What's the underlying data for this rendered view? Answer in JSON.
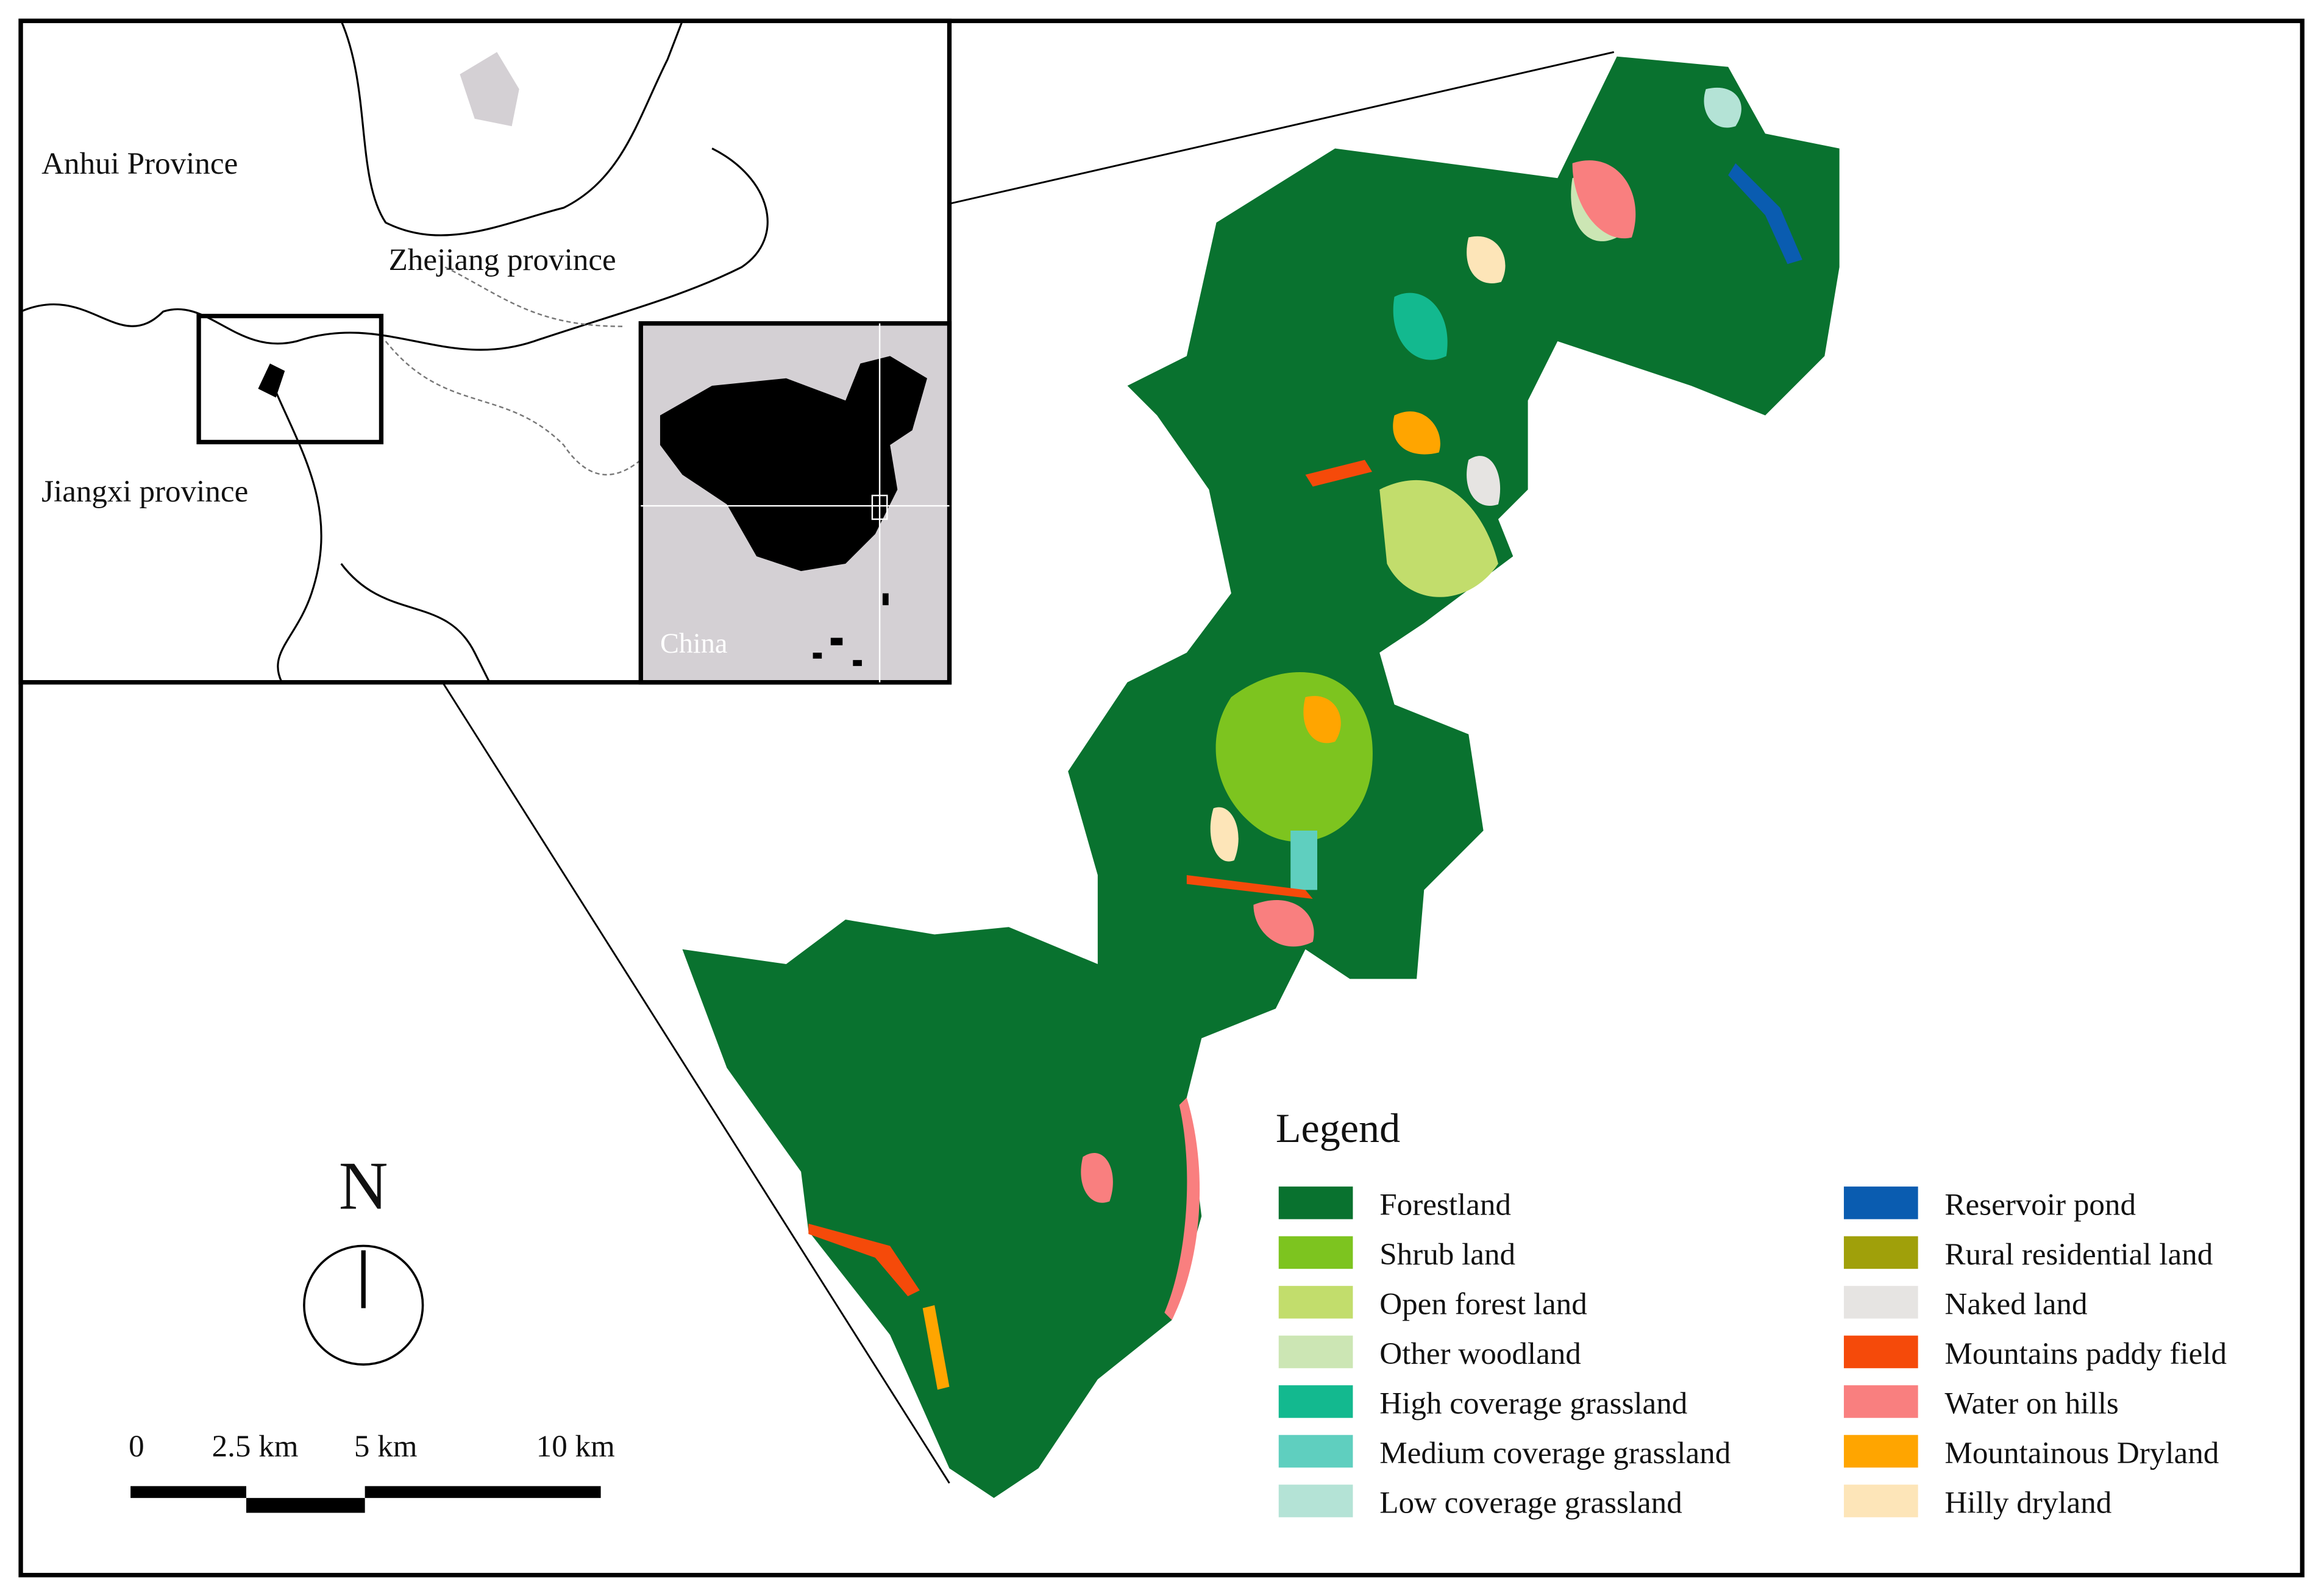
{
  "inset": {
    "labels": [
      "Anhui Province",
      "Zhejiang province",
      "Jiangxi province"
    ],
    "china_label": "China"
  },
  "legend": {
    "title": "Legend",
    "items": [
      {
        "label": "Forestland",
        "color": "#09722f"
      },
      {
        "label": "Shrub land",
        "color": "#7dc41f"
      },
      {
        "label": "Open forest land",
        "color": "#c2dd6c"
      },
      {
        "label": "Other woodland",
        "color": "#cce6b4"
      },
      {
        "label": "High coverage grassland",
        "color": "#13b98f"
      },
      {
        "label": "Medium coverage grassland",
        "color": "#5fcfbf"
      },
      {
        "label": "Low coverage grassland",
        "color": "#b4e3d6"
      },
      {
        "label": "Reservoir pond",
        "color": "#0a5cb0"
      },
      {
        "label": "Rural residential land",
        "color": "#a0a00a"
      },
      {
        "label": "Naked land",
        "color": "#e6e4e2"
      },
      {
        "label": "Mountains paddy field",
        "color": "#f54a0a"
      },
      {
        "label": "Water on hills",
        "color": "#f97f7f"
      },
      {
        "label": "Mountainous Dryland",
        "color": "#ffa500"
      },
      {
        "label": "Hilly dryland",
        "color": "#fde5b8"
      }
    ]
  },
  "north": "N",
  "scale": {
    "labels": [
      "0",
      "2.5 km",
      "5 km",
      "10 km"
    ]
  }
}
